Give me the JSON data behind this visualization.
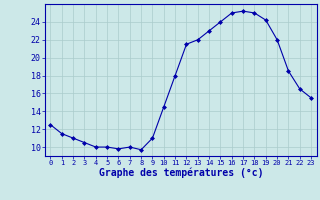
{
  "hours": [
    0,
    1,
    2,
    3,
    4,
    5,
    6,
    7,
    8,
    9,
    10,
    11,
    12,
    13,
    14,
    15,
    16,
    17,
    18,
    19,
    20,
    21,
    22,
    23
  ],
  "temperatures": [
    12.5,
    11.5,
    11.0,
    10.5,
    10.0,
    10.0,
    9.8,
    10.0,
    9.7,
    11.0,
    14.5,
    18.0,
    21.5,
    22.0,
    23.0,
    24.0,
    25.0,
    25.2,
    25.0,
    24.2,
    22.0,
    18.5,
    16.5,
    15.5
  ],
  "line_color": "#0000aa",
  "marker": "D",
  "marker_size": 2.0,
  "bg_color": "#cce8e8",
  "grid_color": "#aacccc",
  "xlabel": "Graphe des températures (°c)",
  "xlabel_color": "#0000aa",
  "ylabel_ticks": [
    10,
    12,
    14,
    16,
    18,
    20,
    22,
    24
  ],
  "ylim": [
    9.0,
    26.0
  ],
  "xlim": [
    -0.5,
    23.5
  ],
  "tick_color": "#0000aa",
  "axis_color": "#0000aa",
  "xtick_fontsize": 5.0,
  "ytick_fontsize": 6.0,
  "xlabel_fontsize": 7.0
}
